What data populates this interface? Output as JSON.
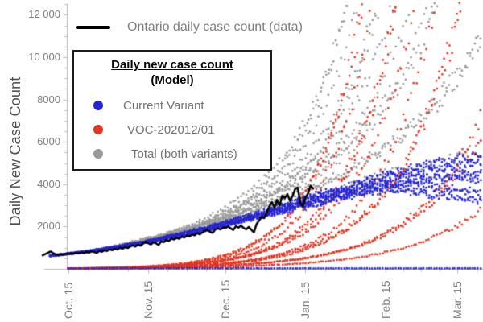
{
  "colors": {
    "current_variant": "#2424d2",
    "voc": "#e1331f",
    "total": "#999999",
    "observed_line": "#000000",
    "axis": "#b8b8b8",
    "tick_text": "#7d7d7d"
  },
  "data_legend": {
    "label": "Ontario daily case count (data)"
  },
  "model_legend": {
    "title_line1": "Daily new case count",
    "title_line2": "(Model)",
    "items": [
      {
        "label": "Current Variant",
        "color": "#2424d2"
      },
      {
        "label": "VOC-202012/01",
        "color": "#e1331f"
      },
      {
        "label": "Total (both variants)",
        "color": "#999999"
      }
    ]
  },
  "chart_data": {
    "type": "scatter+line",
    "title": "",
    "xlabel": "",
    "ylabel": "Daily New Case Count",
    "ylim": [
      0,
      12600
    ],
    "grid": false,
    "x_unit": "day 0 = Oct. 5",
    "y_ticks": [
      {
        "value": 2000,
        "label": "2000"
      },
      {
        "value": 4000,
        "label": "4000"
      },
      {
        "value": 6000,
        "label": "6000"
      },
      {
        "value": 8000,
        "label": "8000"
      },
      {
        "value": 10000,
        "label": "10 000"
      },
      {
        "value": 12000,
        "label": "12 000"
      }
    ],
    "x_ticks": [
      {
        "day": 10,
        "label": "Oct. 15"
      },
      {
        "day": 41,
        "label": "Nov. 15"
      },
      {
        "day": 71,
        "label": "Dec. 15"
      },
      {
        "day": 102,
        "label": "Jan. 15"
      },
      {
        "day": 133,
        "label": "Feb. 15"
      },
      {
        "day": 161,
        "label": "Mar. 15"
      }
    ],
    "observed": {
      "name": "Ontario daily case count (data)",
      "color": "#000000",
      "points": [
        [
          0,
          640
        ],
        [
          1,
          700
        ],
        [
          2,
          760
        ],
        [
          3,
          820
        ],
        [
          4,
          750
        ],
        [
          5,
          690
        ],
        [
          6,
          650
        ],
        [
          7,
          700
        ],
        [
          8,
          670
        ],
        [
          9,
          720
        ],
        [
          10,
          690
        ],
        [
          11,
          745
        ],
        [
          12,
          715
        ],
        [
          13,
          765
        ],
        [
          14,
          730
        ],
        [
          15,
          780
        ],
        [
          16,
          745
        ],
        [
          17,
          800
        ],
        [
          18,
          765
        ],
        [
          19,
          830
        ],
        [
          20,
          795
        ],
        [
          21,
          760
        ],
        [
          22,
          845
        ],
        [
          23,
          810
        ],
        [
          24,
          880
        ],
        [
          25,
          845
        ],
        [
          26,
          920
        ],
        [
          27,
          880
        ],
        [
          28,
          955
        ],
        [
          29,
          915
        ],
        [
          30,
          1000
        ],
        [
          31,
          950
        ],
        [
          32,
          1030
        ],
        [
          33,
          985
        ],
        [
          34,
          1060
        ],
        [
          35,
          1110
        ],
        [
          36,
          1055
        ],
        [
          37,
          1140
        ],
        [
          38,
          1095
        ],
        [
          39,
          1200
        ],
        [
          40,
          1280
        ],
        [
          41,
          1215
        ],
        [
          42,
          1160
        ],
        [
          43,
          1250
        ],
        [
          44,
          1210
        ],
        [
          45,
          1130
        ],
        [
          46,
          1300
        ],
        [
          47,
          1260
        ],
        [
          48,
          1370
        ],
        [
          49,
          1320
        ],
        [
          50,
          1430
        ],
        [
          51,
          1390
        ],
        [
          52,
          1460
        ],
        [
          53,
          1420
        ],
        [
          54,
          1520
        ],
        [
          55,
          1480
        ],
        [
          56,
          1570
        ],
        [
          57,
          1530
        ],
        [
          58,
          1625
        ],
        [
          59,
          1580
        ],
        [
          60,
          1690
        ],
        [
          61,
          1635
        ],
        [
          62,
          1720
        ],
        [
          63,
          1790
        ],
        [
          64,
          1845
        ],
        [
          65,
          1750
        ],
        [
          66,
          1700
        ],
        [
          67,
          1860
        ],
        [
          68,
          1920
        ],
        [
          69,
          1860
        ],
        [
          70,
          1950
        ],
        [
          71,
          1935
        ],
        [
          72,
          2005
        ],
        [
          73,
          1915
        ],
        [
          74,
          1840
        ],
        [
          75,
          2015
        ],
        [
          76,
          1950
        ],
        [
          77,
          2040
        ],
        [
          78,
          1940
        ],
        [
          79,
          1865
        ],
        [
          80,
          1985
        ],
        [
          81,
          1850
        ],
        [
          82,
          1720
        ],
        [
          83,
          2110
        ],
        [
          84,
          2280
        ],
        [
          85,
          2450
        ],
        [
          86,
          2395
        ],
        [
          87,
          2650
        ],
        [
          88,
          2955
        ],
        [
          89,
          3155
        ],
        [
          90,
          2880
        ],
        [
          91,
          3265
        ],
        [
          92,
          2985
        ],
        [
          93,
          3455
        ],
        [
          94,
          3340
        ],
        [
          95,
          3530
        ],
        [
          96,
          3210
        ],
        [
          97,
          3440
        ],
        [
          98,
          3765
        ],
        [
          99,
          3845
        ],
        [
          100,
          3120
        ],
        [
          101,
          2950
        ],
        [
          102,
          3360
        ],
        [
          103,
          3560
        ],
        [
          104,
          3930
        ],
        [
          105,
          3790
        ]
      ]
    },
    "model": {
      "start_day": 3,
      "end_day": 171,
      "voc_start_day": 10,
      "current_variant": {
        "initial_value": 620,
        "logistic_rate": 0.0235
      },
      "baseline": {
        "value": 25,
        "start_day": 10,
        "color": "#2424d2"
      },
      "scenarios": [
        {
          "voc_growth": 0.034,
          "voc_seed": 12,
          "blue_K": 5050,
          "blue_decline": 0.009,
          "blue_peak_day": 132
        },
        {
          "voc_growth": 0.0365,
          "voc_seed": 18,
          "blue_K": 5950,
          "blue_decline": 0,
          "blue_peak_day": 0
        },
        {
          "voc_growth": 0.039,
          "voc_seed": 14,
          "blue_K": 5350,
          "blue_decline": 0.007,
          "blue_peak_day": 138
        },
        {
          "voc_growth": 0.0415,
          "voc_seed": 22,
          "blue_K": 6300,
          "blue_decline": 0,
          "blue_peak_day": 0
        },
        {
          "voc_growth": 0.044,
          "voc_seed": 16,
          "blue_K": 5600,
          "blue_decline": 0.008,
          "blue_peak_day": 128
        },
        {
          "voc_growth": 0.0462,
          "voc_seed": 25,
          "blue_K": 5150,
          "blue_decline": 0,
          "blue_peak_day": 0
        },
        {
          "voc_growth": 0.0484,
          "voc_seed": 13,
          "blue_K": 6100,
          "blue_decline": 0.006,
          "blue_peak_day": 142
        },
        {
          "voc_growth": 0.0506,
          "voc_seed": 20,
          "blue_K": 5800,
          "blue_decline": 0,
          "blue_peak_day": 0
        },
        {
          "voc_growth": 0.0528,
          "voc_seed": 15,
          "blue_K": 4900,
          "blue_decline": 0.008,
          "blue_peak_day": 135
        },
        {
          "voc_growth": 0.0545,
          "voc_seed": 24,
          "blue_K": 6400,
          "blue_decline": 0,
          "blue_peak_day": 0
        },
        {
          "voc_growth": 0.0558,
          "voc_seed": 17,
          "blue_K": 5500,
          "blue_decline": 0.006,
          "blue_peak_day": 148
        },
        {
          "voc_growth": 0.057,
          "voc_seed": 19,
          "blue_K": 5250,
          "blue_decline": 0,
          "blue_peak_day": 0
        }
      ]
    }
  }
}
